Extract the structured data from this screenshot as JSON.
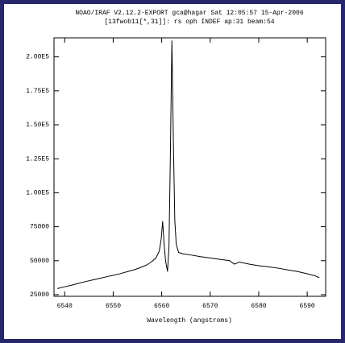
{
  "chart_data": {
    "type": "line",
    "title": "NOAO/IRAF V2.12.2-EXPORT gca@hagar Sat 12:05:57 15-Apr-2006",
    "subtitle": "[13fwob11[*,31]]: rs oph INDEF ap:31 beam:54",
    "x_label": "Wavelength (angstroms)",
    "xlim": [
      6537.8,
      6593.8
    ],
    "ylim": [
      23800,
      214000
    ],
    "xticks": [
      6540,
      6550,
      6560,
      6570,
      6580,
      6590
    ],
    "yticks": [
      25000,
      50000,
      75000,
      {
        "value": 100000,
        "label": "1.00E5"
      },
      {
        "value": 125000,
        "label": "1.25E5"
      },
      {
        "value": 150000,
        "label": "1.50E5"
      },
      {
        "value": 175000,
        "label": "1.75E5"
      },
      {
        "value": 200000,
        "label": "2.00E5"
      }
    ],
    "color": "#000000",
    "x": [
      6538.5,
      6540,
      6541.5,
      6543,
      6544.5,
      6546,
      6547.5,
      6549,
      6550,
      6551.5,
      6553,
      6554.5,
      6556,
      6557,
      6558,
      6558.8,
      6559.5,
      6559.9,
      6560.2,
      6560.5,
      6560.8,
      6561.2,
      6561.5,
      6561.8,
      6562.1,
      6562.4,
      6562.7,
      6563,
      6563.5,
      6564.5,
      6566,
      6568,
      6570,
      6572,
      6574,
      6575,
      6576,
      6578,
      6580,
      6582,
      6584,
      6586,
      6588,
      6590,
      6591.5,
      6592.5
    ],
    "values": [
      29500,
      30800,
      32000,
      33500,
      34800,
      36000,
      37200,
      38500,
      39200,
      40500,
      42000,
      43500,
      45500,
      47000,
      49500,
      52000,
      57000,
      66000,
      79000,
      62000,
      50000,
      42000,
      60000,
      130000,
      212000,
      140000,
      80000,
      62000,
      56000,
      55000,
      54200,
      53000,
      52000,
      51000,
      50000,
      47500,
      49000,
      47500,
      46300,
      45500,
      44500,
      43200,
      42000,
      40400,
      39000,
      37500
    ]
  }
}
